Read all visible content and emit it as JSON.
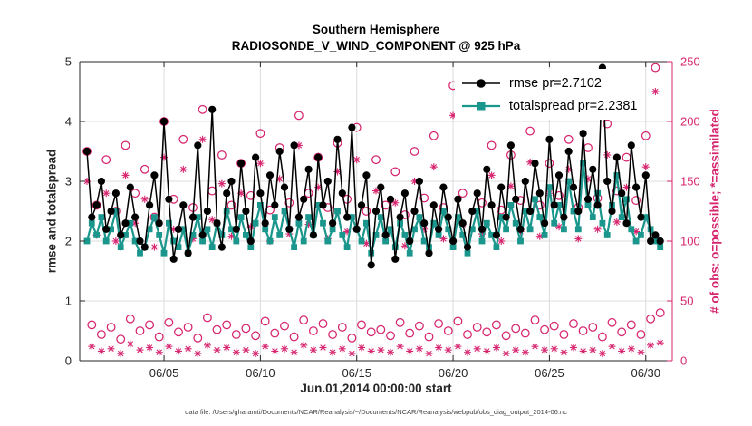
{
  "caption": "data file: /Users/gharamti/Documents/NCAR/Reanalysis/~/Documents/NCAR/Reanalysis/webpub/obs_diag_output_2014-06.nc",
  "chart_data": {
    "type": "line",
    "title": "Southern Hemisphere",
    "subtitle": "RADIOSONDE_V_WIND_COMPONENT @ 925 hPa",
    "xlabel": "Jun.01,2014 00:00:00 start",
    "ylabel_left": "rmse and totalspread",
    "ylabel_right": "# of obs: o=possible; *=assimilated",
    "ylim_left": [
      0,
      5
    ],
    "ylim_right": [
      0,
      250
    ],
    "yticks_left": [
      0,
      1,
      2,
      3,
      4,
      5
    ],
    "yticks_right": [
      0,
      50,
      100,
      150,
      200,
      250
    ],
    "xticks": [
      {
        "index": 16,
        "label": "06/05"
      },
      {
        "index": 36,
        "label": "06/10"
      },
      {
        "index": 56,
        "label": "06/15"
      },
      {
        "index": 76,
        "label": "06/20"
      },
      {
        "index": 96,
        "label": "06/25"
      },
      {
        "index": 116,
        "label": "06/30"
      }
    ],
    "x_description": "6-hourly observation bins, Jun 1 00Z through Jun 30 18Z 2014 (indices 0-119)",
    "grid": true,
    "legend_position": "top-right-inside",
    "axis_color": "#262626",
    "grid_color": "#dcdcdc",
    "series": [
      {
        "name": "rmse pr=2.7102",
        "axis": "left",
        "color": "#000000",
        "marker": "circle-filled",
        "line": true,
        "values": [
          3.5,
          2.4,
          2.6,
          3.0,
          2.2,
          2.5,
          2.8,
          2.1,
          2.3,
          2.9,
          2.4,
          2.0,
          1.9,
          2.6,
          3.1,
          2.3,
          4.0,
          2.7,
          1.7,
          2.2,
          2.6,
          1.8,
          2.4,
          3.6,
          2.1,
          2.5,
          4.2,
          2.3,
          1.9,
          2.8,
          3.0,
          2.2,
          3.3,
          2.5,
          2.0,
          3.4,
          2.8,
          2.3,
          3.1,
          2.6,
          3.5,
          2.9,
          2.2,
          3.6,
          2.4,
          2.7,
          3.2,
          2.1,
          3.4,
          2.6,
          3.0,
          2.3,
          3.7,
          2.8,
          2.4,
          3.9,
          2.2,
          2.6,
          3.1,
          1.6,
          2.5,
          2.9,
          2.1,
          2.7,
          1.7,
          2.4,
          2.8,
          2.0,
          2.5,
          3.0,
          2.3,
          1.8,
          2.6,
          2.2,
          2.9,
          2.4,
          2.0,
          2.7,
          2.3,
          1.9,
          2.5,
          2.8,
          2.2,
          3.2,
          2.6,
          2.1,
          2.9,
          2.4,
          3.6,
          2.7,
          2.2,
          3.0,
          2.5,
          3.3,
          2.8,
          2.3,
          3.7,
          2.6,
          3.1,
          2.4,
          3.5,
          2.9,
          2.5,
          3.8,
          2.7,
          3.2,
          2.6,
          4.9,
          3.0,
          2.5,
          3.4,
          2.8,
          2.3,
          3.6,
          2.9,
          2.4,
          3.1,
          2.0,
          2.1,
          2.0
        ]
      },
      {
        "name": "totalspread pr=2.2381",
        "axis": "left",
        "color": "#1a968c",
        "marker": "square-filled",
        "line": true,
        "values": [
          2.0,
          2.3,
          2.1,
          2.4,
          2.0,
          2.2,
          2.5,
          1.9,
          2.1,
          2.3,
          2.0,
          1.8,
          1.9,
          2.2,
          2.4,
          2.1,
          1.8,
          2.3,
          2.0,
          1.9,
          2.2,
          1.8,
          2.1,
          2.4,
          2.0,
          2.2,
          1.9,
          2.3,
          2.1,
          2.5,
          2.2,
          2.0,
          2.4,
          2.1,
          1.9,
          2.3,
          2.6,
          2.2,
          2.0,
          2.4,
          2.1,
          2.5,
          2.2,
          1.9,
          2.3,
          2.0,
          2.4,
          2.1,
          2.6,
          2.3,
          2.0,
          2.2,
          2.5,
          2.1,
          1.9,
          2.4,
          2.2,
          2.0,
          2.3,
          1.8,
          2.1,
          2.4,
          2.0,
          2.2,
          1.9,
          2.3,
          2.1,
          1.8,
          2.2,
          2.4,
          2.0,
          1.9,
          2.3,
          2.1,
          2.5,
          2.2,
          1.9,
          2.4,
          2.1,
          1.8,
          2.2,
          2.5,
          2.0,
          2.3,
          2.1,
          1.9,
          2.4,
          2.2,
          2.6,
          2.3,
          2.0,
          2.5,
          2.2,
          2.7,
          2.4,
          2.1,
          2.9,
          2.3,
          2.6,
          2.2,
          3.0,
          2.5,
          2.2,
          3.3,
          2.6,
          2.4,
          2.8,
          2.3,
          2.1,
          2.6,
          3.1,
          2.4,
          2.7,
          2.2,
          2.0,
          2.1,
          2.4,
          2.2,
          2.0,
          1.9
        ]
      },
      {
        "name": "# of possible obs",
        "axis": "right",
        "color": "#d6246e",
        "marker": "circle-open",
        "line": false,
        "values": [
          175,
          30,
          130,
          22,
          168,
          28,
          125,
          18,
          180,
          35,
          140,
          25,
          160,
          30,
          120,
          20,
          200,
          32,
          135,
          24,
          185,
          28,
          128,
          19,
          210,
          36,
          142,
          26,
          172,
          30,
          130,
          22,
          165,
          27,
          138,
          21,
          190,
          33,
          126,
          23,
          178,
          29,
          132,
          20,
          205,
          34,
          140,
          25,
          170,
          31,
          128,
          22,
          182,
          28,
          135,
          19,
          195,
          30,
          125,
          24,
          168,
          26,
          130,
          21,
          158,
          32,
          122,
          23,
          175,
          29,
          136,
          20,
          188,
          31,
          128,
          25,
          230,
          33,
          140,
          22,
          235,
          28,
          132,
          24,
          180,
          30,
          126,
          21,
          172,
          27,
          134,
          23,
          192,
          34,
          130,
          26,
          165,
          29,
          138,
          22,
          185,
          31,
          128,
          25,
          178,
          28,
          136,
          20,
          198,
          32,
          142,
          24,
          170,
          30,
          134,
          22,
          188,
          35,
          245,
          40
        ]
      },
      {
        "name": "# of assimilated obs",
        "axis": "right",
        "color": "#d6246e",
        "marker": "asterisk",
        "line": false,
        "values": [
          150,
          12,
          105,
          8,
          140,
          10,
          100,
          6,
          155,
          14,
          115,
          9,
          135,
          11,
          95,
          7,
          170,
          12,
          110,
          8,
          160,
          10,
          102,
          6,
          185,
          13,
          118,
          9,
          148,
          11,
          104,
          7,
          140,
          9,
          112,
          6,
          165,
          12,
          100,
          8,
          152,
          10,
          106,
          7,
          180,
          13,
          114,
          9,
          145,
          11,
          102,
          7,
          158,
          10,
          108,
          6,
          168,
          11,
          98,
          8,
          142,
          9,
          104,
          7,
          132,
          12,
          96,
          8,
          150,
          10,
          110,
          6,
          162,
          11,
          102,
          9,
          205,
          12,
          114,
          7,
          210,
          10,
          106,
          8,
          155,
          11,
          100,
          6,
          146,
          9,
          108,
          7,
          166,
          12,
          104,
          9,
          140,
          10,
          112,
          7,
          160,
          11,
          102,
          8,
          152,
          9,
          110,
          6,
          172,
          12,
          116,
          8,
          145,
          10,
          108,
          7,
          162,
          13,
          225,
          15
        ]
      }
    ]
  }
}
